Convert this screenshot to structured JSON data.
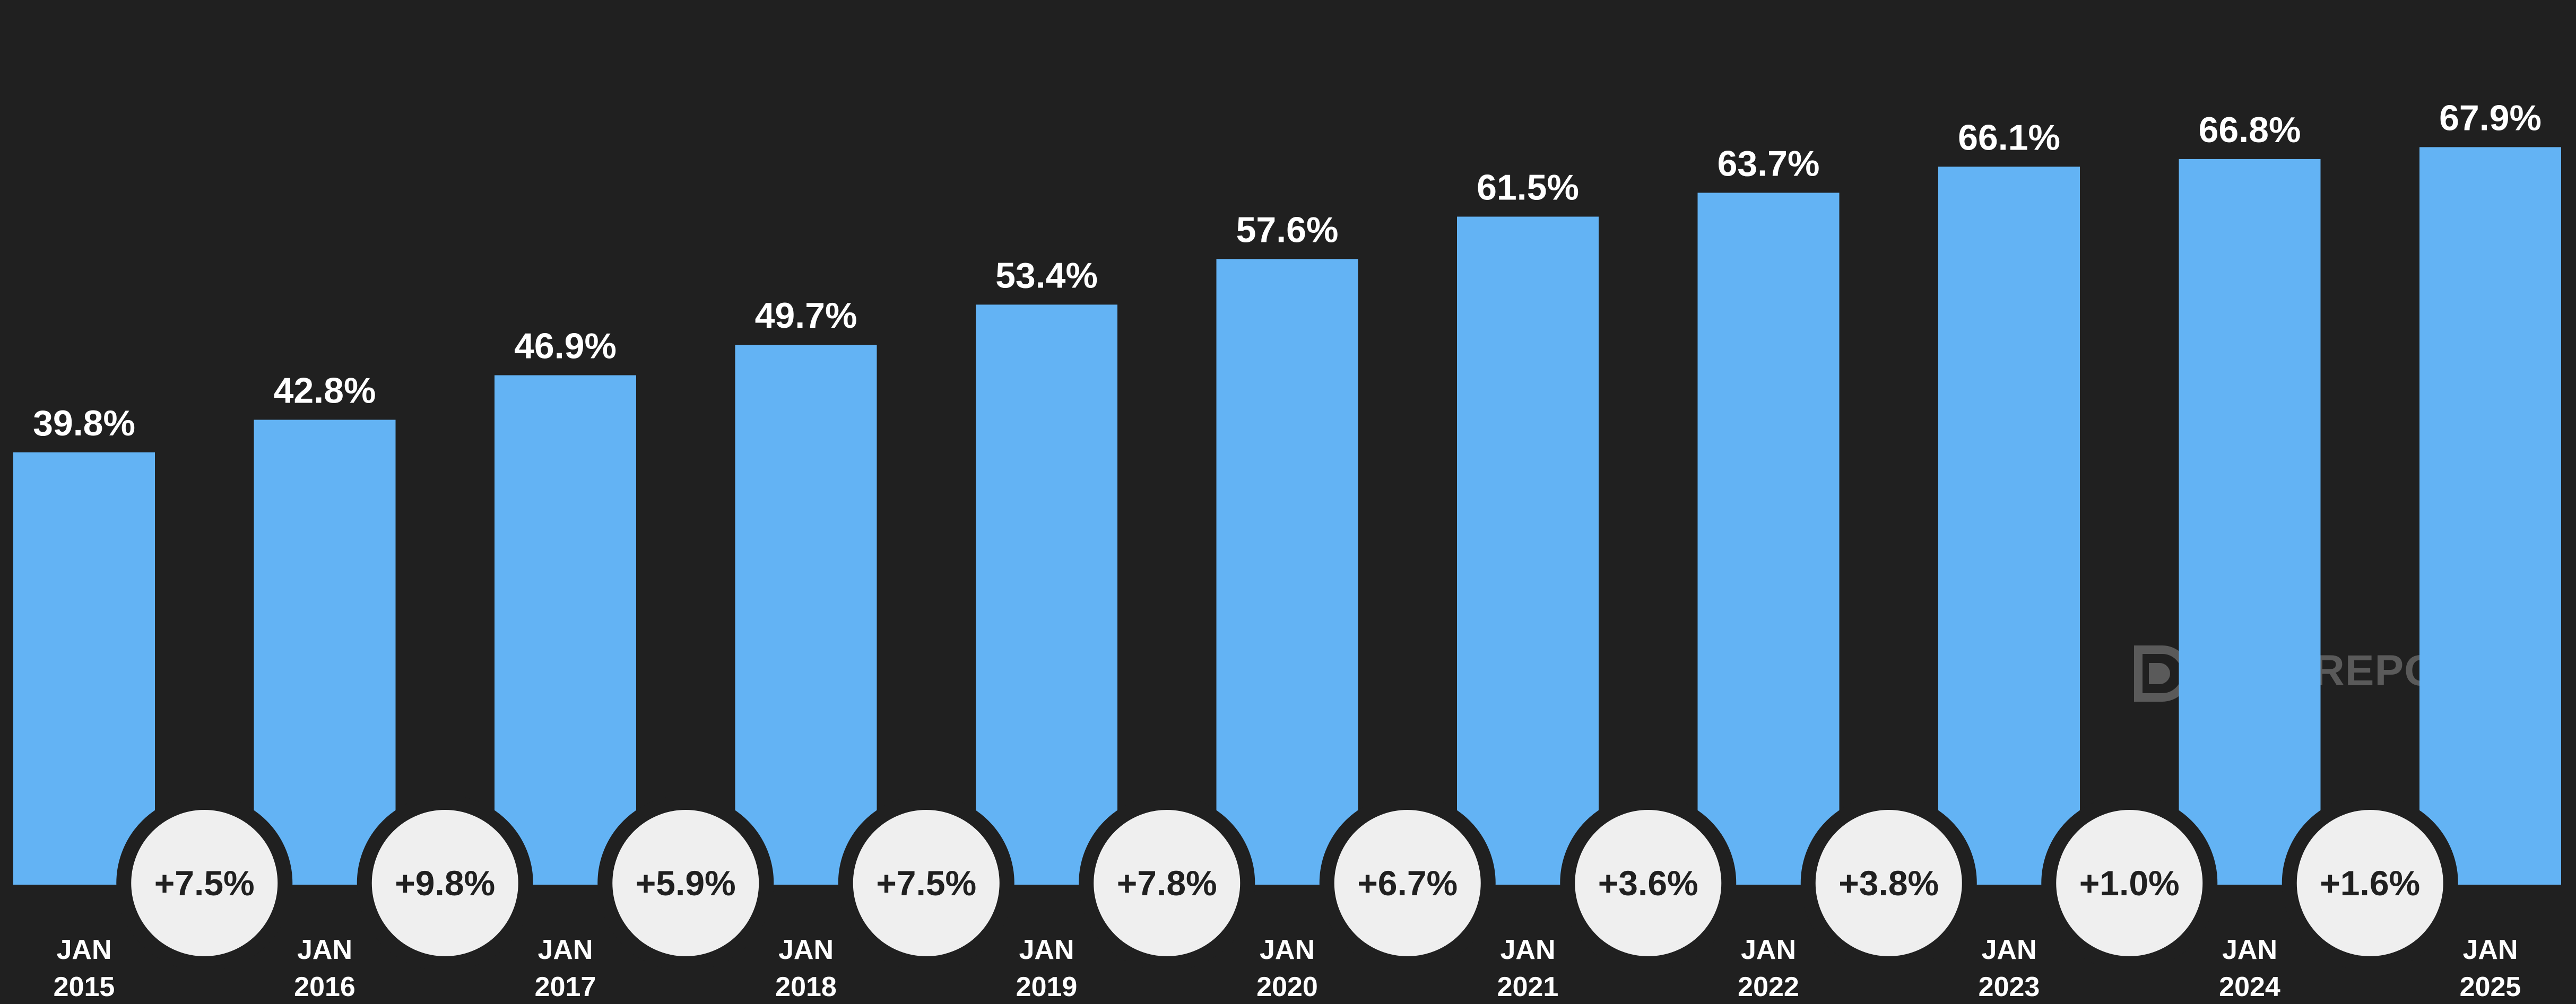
{
  "chart_data": {
    "type": "bar",
    "categories": [
      [
        "JAN",
        "2015"
      ],
      [
        "JAN",
        "2016"
      ],
      [
        "JAN",
        "2017"
      ],
      [
        "JAN",
        "2018"
      ],
      [
        "JAN",
        "2019"
      ],
      [
        "JAN",
        "2020"
      ],
      [
        "JAN",
        "2021"
      ],
      [
        "JAN",
        "2022"
      ],
      [
        "JAN",
        "2023"
      ],
      [
        "JAN",
        "2024"
      ],
      [
        "JAN",
        "2025"
      ]
    ],
    "values": [
      39.8,
      42.8,
      46.9,
      49.7,
      53.4,
      57.6,
      61.5,
      63.7,
      66.1,
      66.8,
      67.9
    ],
    "value_labels": [
      "39.8%",
      "42.8%",
      "46.9%",
      "49.7%",
      "53.4%",
      "57.6%",
      "61.5%",
      "63.7%",
      "66.1%",
      "66.8%",
      "67.9%"
    ],
    "changes": [
      "+7.5%",
      "+9.8%",
      "+5.9%",
      "+7.5%",
      "+7.8%",
      "+6.7%",
      "+3.6%",
      "+3.8%",
      "+1.0%",
      "+1.6%"
    ],
    "ylim": [
      0,
      80
    ],
    "grid": false,
    "legend": "none",
    "bar_color": "#63b3f4",
    "background_color": "#202020",
    "bubble_color": "#efefef"
  },
  "watermark": {
    "text": "DATAREPORTAL",
    "icon": "datareportal-logo-icon"
  }
}
